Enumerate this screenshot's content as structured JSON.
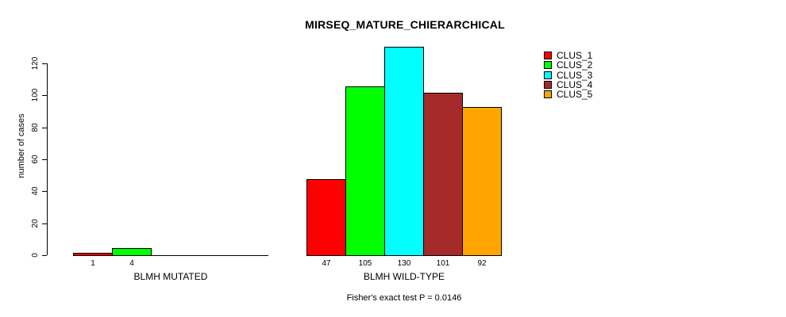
{
  "chart_data": {
    "type": "bar",
    "title": "MIRSEQ_MATURE_CHIERARCHICAL",
    "ylabel": "number of cases",
    "footer": "Fisher's exact test P = 0.0146",
    "ylim": [
      0,
      130
    ],
    "yticks": [
      0,
      20,
      40,
      60,
      80,
      100,
      120
    ],
    "grid": false,
    "legend_position": "top-right",
    "series": [
      {
        "name": "CLUS_1",
        "color": "#ff0000"
      },
      {
        "name": "CLUS_2",
        "color": "#00ff00"
      },
      {
        "name": "CLUS_3",
        "color": "#00ffff"
      },
      {
        "name": "CLUS_4",
        "color": "#a52a2a"
      },
      {
        "name": "CLUS_5",
        "color": "#ffa500"
      }
    ],
    "groups": [
      {
        "label": "BLMH MUTATED",
        "values": [
          1,
          4,
          0,
          0,
          0
        ],
        "shown_bar_labels": [
          "1",
          "4"
        ]
      },
      {
        "label": "BLMH WILD-TYPE",
        "values": [
          47,
          105,
          130,
          101,
          92
        ],
        "shown_bar_labels": [
          "47",
          "105",
          "130",
          "101",
          "92"
        ]
      }
    ]
  }
}
